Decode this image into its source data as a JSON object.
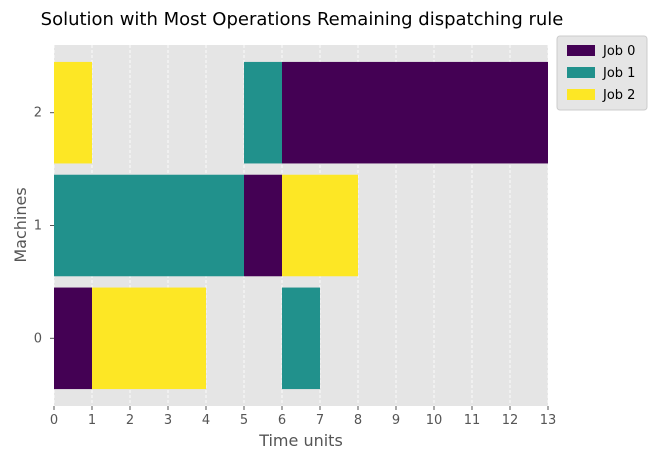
{
  "chart_data": {
    "type": "gantt",
    "title": "Solution with Most Operations Remaining dispatching rule",
    "xlabel": "Time units",
    "ylabel": "Machines",
    "xlim": [
      0,
      13
    ],
    "x_ticks": [
      "0",
      "1",
      "2",
      "3",
      "4",
      "5",
      "6",
      "7",
      "8",
      "9",
      "10",
      "11",
      "12",
      "13"
    ],
    "y_ticks": [
      "0",
      "1",
      "2"
    ],
    "grid": true,
    "legend_placement": "top-right, outside plot",
    "jobs": [
      {
        "name": "Job 0",
        "color": "#440154"
      },
      {
        "name": "Job 1",
        "color": "#21918c"
      },
      {
        "name": "Job 2",
        "color": "#fde725"
      }
    ],
    "operations": [
      {
        "machine": 0,
        "job": 0,
        "start": 0,
        "end": 1
      },
      {
        "machine": 0,
        "job": 2,
        "start": 1,
        "end": 4
      },
      {
        "machine": 0,
        "job": 1,
        "start": 6,
        "end": 7
      },
      {
        "machine": 1,
        "job": 1,
        "start": 0,
        "end": 5
      },
      {
        "machine": 1,
        "job": 0,
        "start": 5,
        "end": 6
      },
      {
        "machine": 1,
        "job": 2,
        "start": 6,
        "end": 8
      },
      {
        "machine": 2,
        "job": 2,
        "start": 0,
        "end": 1
      },
      {
        "machine": 2,
        "job": 1,
        "start": 5,
        "end": 6
      },
      {
        "machine": 2,
        "job": 0,
        "start": 6,
        "end": 13
      }
    ]
  }
}
